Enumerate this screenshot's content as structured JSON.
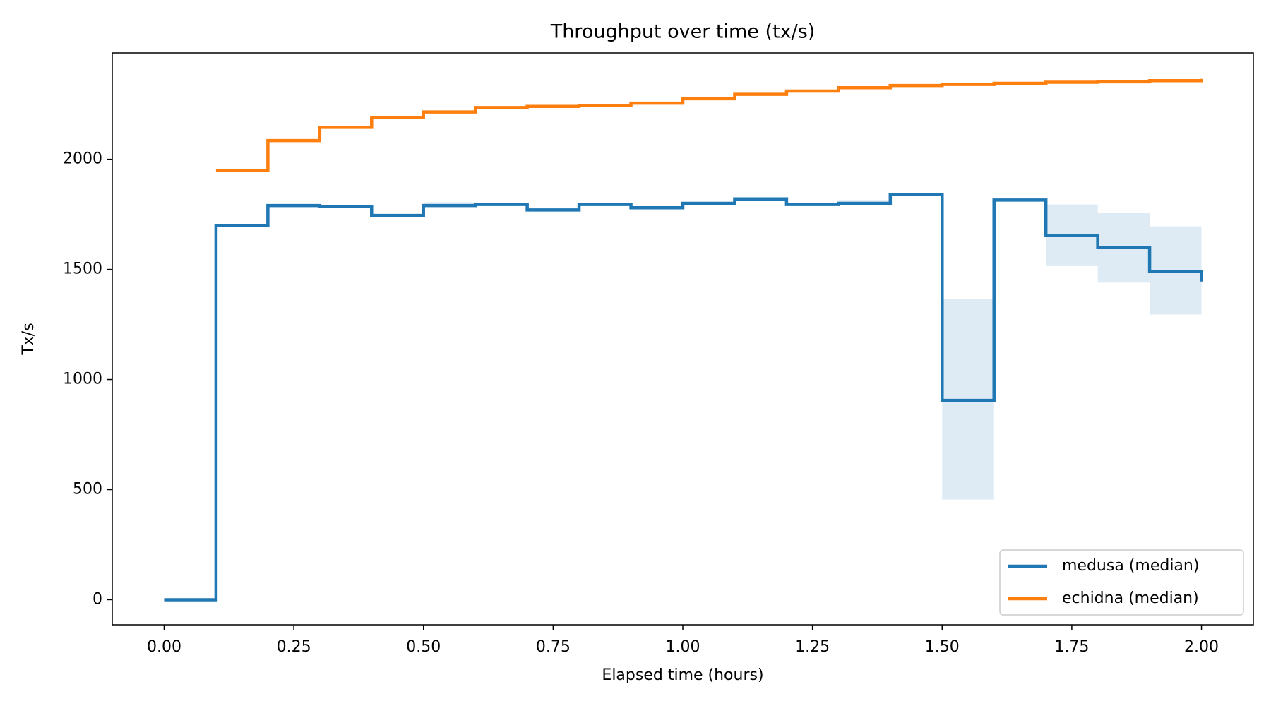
{
  "chart_data": {
    "type": "step",
    "title": "Throughput over time (tx/s)",
    "x_label": "Elapsed time (hours)",
    "y_label": "Tx/s",
    "x": [
      0,
      0.1,
      0.2,
      0.3,
      0.4,
      0.5,
      0.6,
      0.7,
      0.8,
      0.9,
      1.0,
      1.1,
      1.2,
      1.3,
      1.4,
      1.5,
      1.6,
      1.7,
      1.8,
      1.9,
      2.0
    ],
    "series": [
      {
        "name": "medusa (median)",
        "color": "#1f77b4",
        "values": [
          0,
          1700,
          1790,
          1785,
          1745,
          1790,
          1795,
          1770,
          1795,
          1780,
          1800,
          1820,
          1795,
          1800,
          1840,
          905,
          1815,
          1655,
          1600,
          1490,
          1445
        ]
      },
      {
        "name": "echidna (median)",
        "color": "#ff7f0e",
        "values": [
          null,
          1950,
          2085,
          2145,
          2190,
          2215,
          2235,
          2240,
          2245,
          2255,
          2275,
          2295,
          2310,
          2325,
          2335,
          2340,
          2345,
          2350,
          2352,
          2357,
          2365
        ]
      }
    ],
    "band": {
      "color": "#1f77b4",
      "lower": [
        0,
        1695,
        1785,
        1780,
        1740,
        1785,
        1790,
        1765,
        1790,
        1775,
        1795,
        1815,
        1790,
        1795,
        1835,
        455,
        1810,
        1515,
        1440,
        1295,
        1295
      ],
      "upper": [
        0,
        1705,
        1795,
        1790,
        1750,
        1805,
        1800,
        1775,
        1800,
        1785,
        1805,
        1825,
        1800,
        1815,
        1845,
        1365,
        1820,
        1795,
        1755,
        1695,
        1695
      ]
    },
    "xlim": [
      -0.1,
      2.1
    ],
    "ylim": [
      -114,
      2483
    ],
    "xticks": [
      {
        "value": 0,
        "label": "0.00"
      },
      {
        "value": 0.25,
        "label": "0.25"
      },
      {
        "value": 0.5,
        "label": "0.50"
      },
      {
        "value": 0.75,
        "label": "0.75"
      },
      {
        "value": 1,
        "label": "1.00"
      },
      {
        "value": 1.25,
        "label": "1.25"
      },
      {
        "value": 1.5,
        "label": "1.50"
      },
      {
        "value": 1.75,
        "label": "1.75"
      },
      {
        "value": 2,
        "label": "2.00"
      }
    ],
    "yticks": [
      0,
      500,
      1000,
      1500,
      2000
    ],
    "grid": false,
    "legend": "lower right"
  }
}
